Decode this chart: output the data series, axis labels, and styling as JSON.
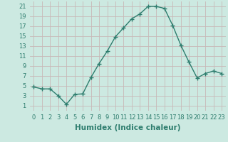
{
  "x": [
    0,
    1,
    2,
    3,
    4,
    5,
    6,
    7,
    8,
    9,
    10,
    11,
    12,
    13,
    14,
    15,
    16,
    17,
    18,
    19,
    20,
    21,
    22,
    23
  ],
  "y": [
    4.8,
    4.4,
    4.4,
    3.0,
    1.3,
    3.3,
    3.4,
    6.7,
    9.5,
    12.0,
    14.9,
    16.7,
    18.5,
    19.5,
    21.0,
    21.0,
    20.6,
    17.2,
    13.2,
    9.8,
    6.6,
    7.5,
    8.0,
    7.5
  ],
  "line_color": "#2e7d6e",
  "marker": "+",
  "marker_size": 4,
  "bg_color": "#cce9e1",
  "grid_color": "#c8b8b8",
  "xlabel": "Humidex (Indice chaleur)",
  "xlim": [
    -0.5,
    23.5
  ],
  "ylim": [
    0,
    22
  ],
  "xticks": [
    0,
    1,
    2,
    3,
    4,
    5,
    6,
    7,
    8,
    9,
    10,
    11,
    12,
    13,
    14,
    15,
    16,
    17,
    18,
    19,
    20,
    21,
    22,
    23
  ],
  "yticks": [
    1,
    3,
    5,
    7,
    9,
    11,
    13,
    15,
    17,
    19,
    21
  ],
  "xlabel_fontsize": 7.5,
  "tick_fontsize": 6.0,
  "linewidth": 1.0
}
